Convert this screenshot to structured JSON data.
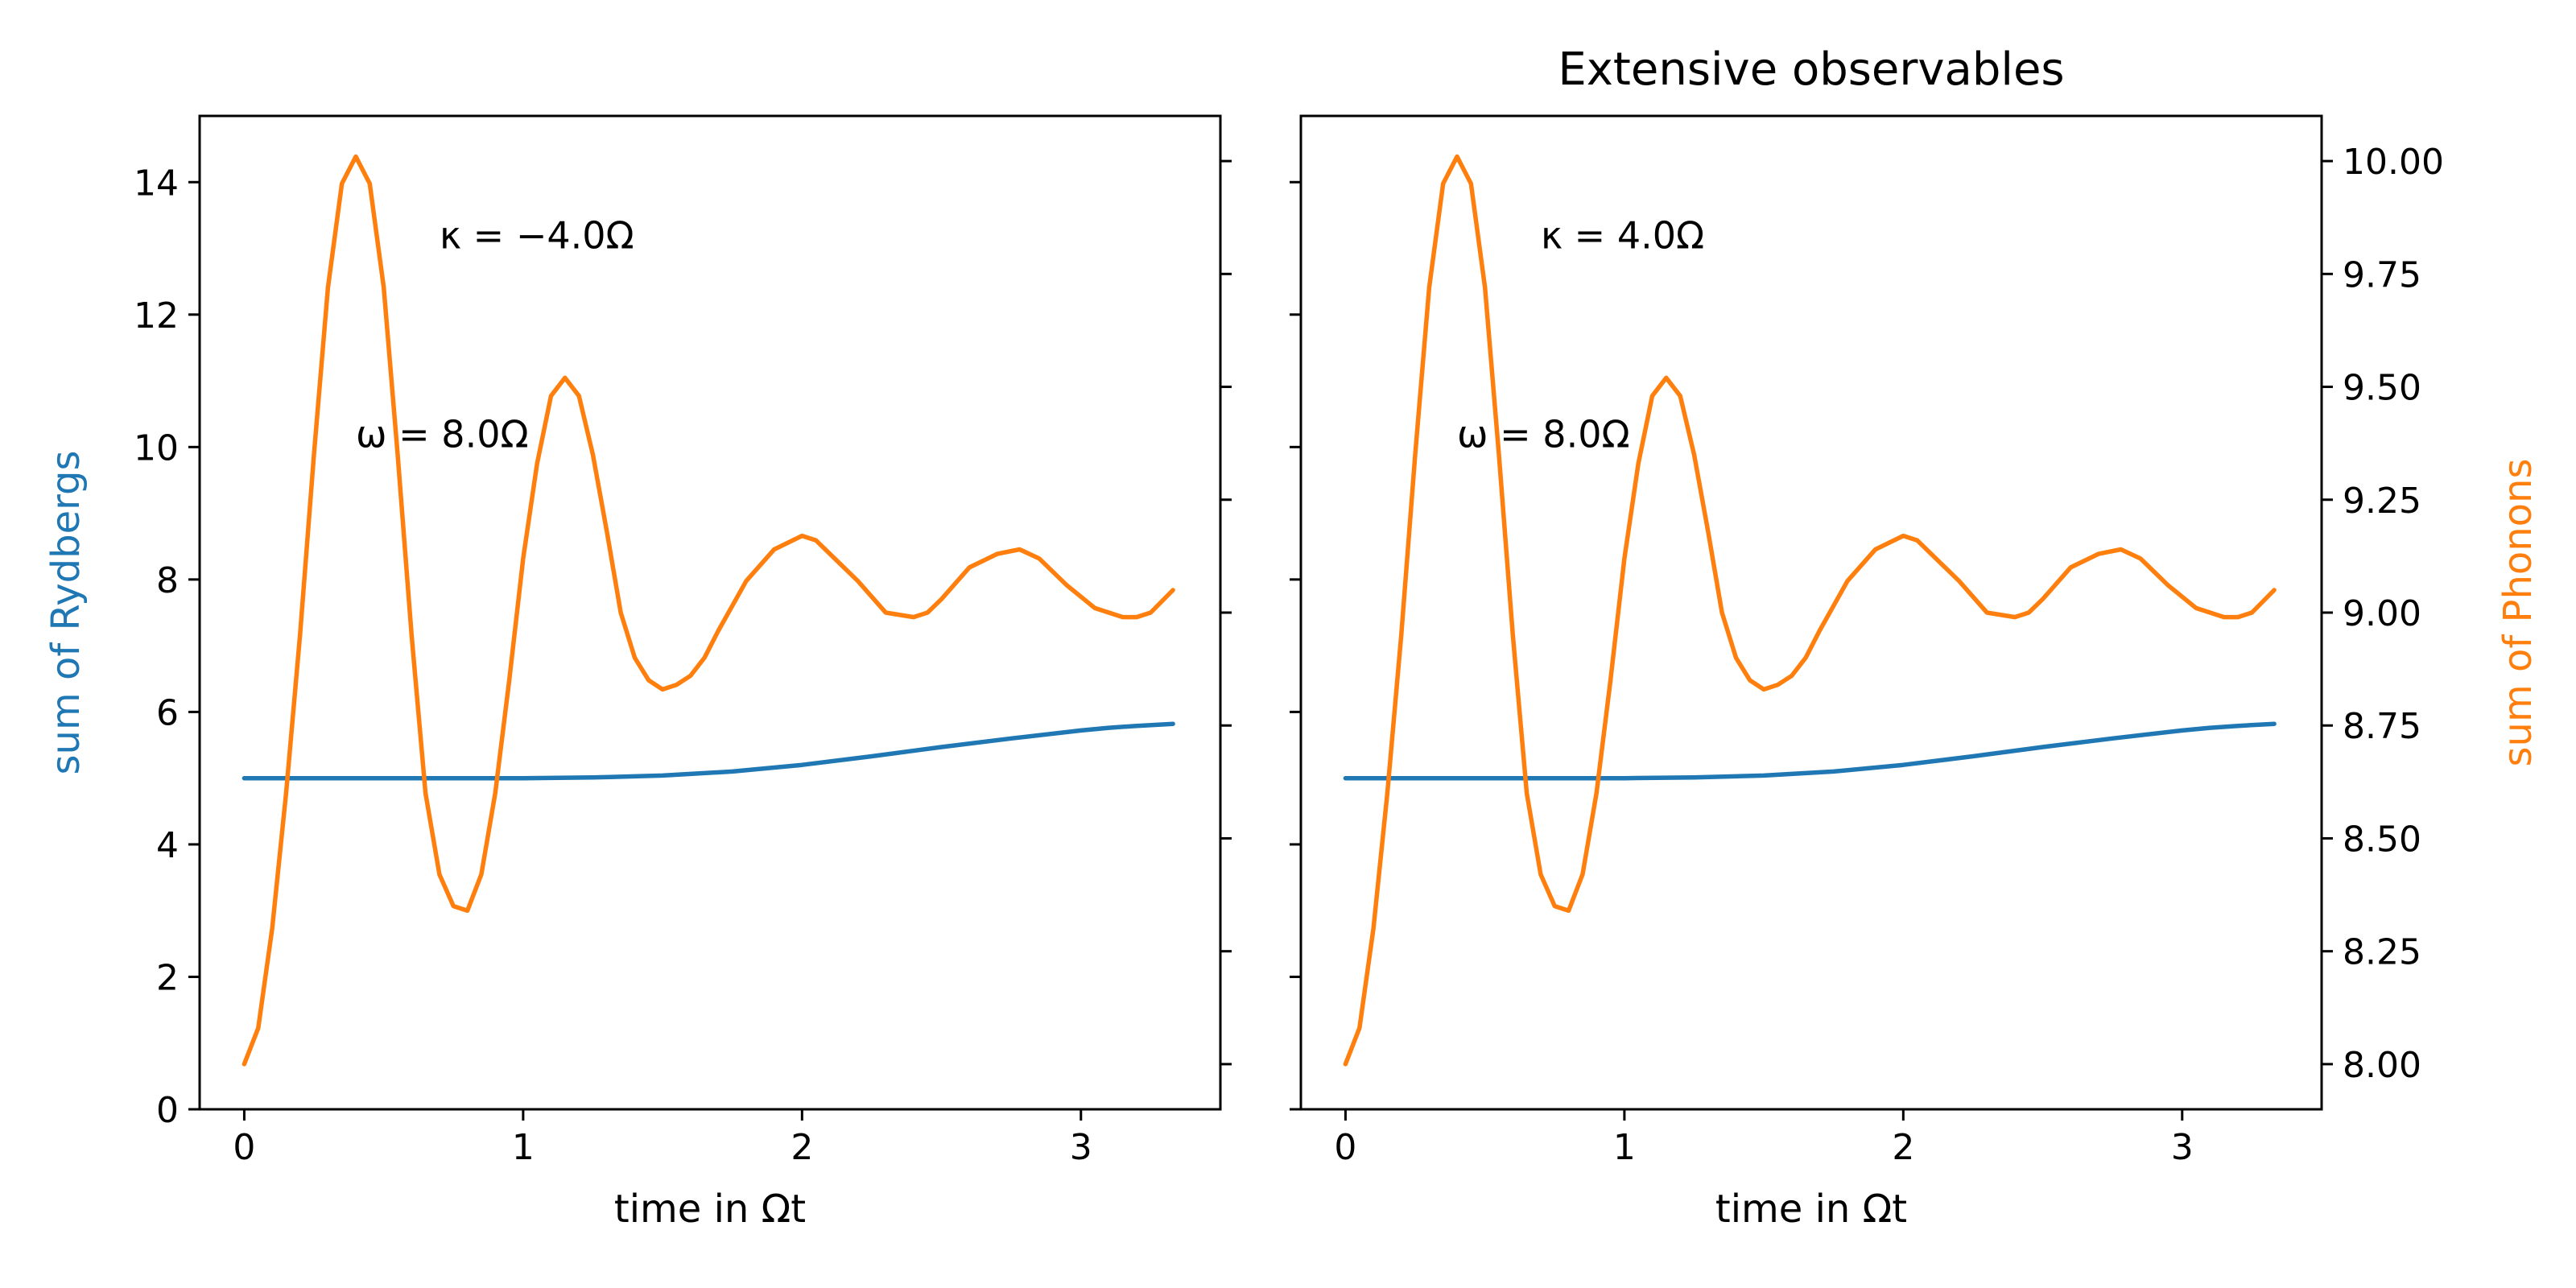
{
  "colors": {
    "rydbergs": "#1f77b4",
    "phonons": "#ff7f0e",
    "axes": "#000000"
  },
  "figure_title": "Extensive observables",
  "chart_data": [
    {
      "type": "line",
      "panel": "left",
      "title": "",
      "xlabel": "time in Ωt",
      "ylabel": "sum of Rydbergs",
      "y2label": "",
      "xlim": [
        -0.16,
        3.5
      ],
      "ylim": [
        0,
        15
      ],
      "y2lim": [
        7.9,
        10.1
      ],
      "xticks": [
        {
          "value": 0,
          "label": "0"
        },
        {
          "value": 1,
          "label": "1"
        },
        {
          "value": 2,
          "label": "2"
        },
        {
          "value": 3,
          "label": "3"
        }
      ],
      "yticks": [
        {
          "value": 0,
          "label": "0"
        },
        {
          "value": 2,
          "label": "2"
        },
        {
          "value": 4,
          "label": "4"
        },
        {
          "value": 6,
          "label": "6"
        },
        {
          "value": 8,
          "label": "8"
        },
        {
          "value": 10,
          "label": "10"
        },
        {
          "value": 12,
          "label": "12"
        },
        {
          "value": 14,
          "label": "14"
        }
      ],
      "y2ticks": [
        {
          "value": 8.0,
          "label": ""
        },
        {
          "value": 8.25,
          "label": ""
        },
        {
          "value": 8.5,
          "label": ""
        },
        {
          "value": 8.75,
          "label": ""
        },
        {
          "value": 9.0,
          "label": ""
        },
        {
          "value": 9.25,
          "label": ""
        },
        {
          "value": 9.5,
          "label": ""
        },
        {
          "value": 9.75,
          "label": ""
        },
        {
          "value": 10.0,
          "label": ""
        }
      ],
      "annotations": [
        {
          "text": "κ = −4.0Ω",
          "x": 0.7,
          "y": 13.0
        },
        {
          "text": "ω = 8.0Ω",
          "x": 0.4,
          "y": 10.0
        }
      ],
      "series": [
        {
          "key": "rydbergs",
          "axis": "left",
          "x": [
            0,
            0.25,
            0.5,
            0.75,
            1.0,
            1.25,
            1.5,
            1.75,
            2.0,
            2.25,
            2.5,
            2.75,
            3.0,
            3.1,
            3.2,
            3.33
          ],
          "values": [
            5.0,
            5.0,
            5.0,
            5.0,
            5.0,
            5.01,
            5.04,
            5.1,
            5.2,
            5.33,
            5.47,
            5.6,
            5.72,
            5.76,
            5.79,
            5.82
          ]
        },
        {
          "key": "phonons",
          "axis": "right",
          "x": [
            0,
            0.05,
            0.1,
            0.15,
            0.2,
            0.25,
            0.3,
            0.35,
            0.4,
            0.45,
            0.5,
            0.55,
            0.6,
            0.65,
            0.7,
            0.75,
            0.8,
            0.85,
            0.9,
            0.95,
            1.0,
            1.05,
            1.1,
            1.15,
            1.2,
            1.25,
            1.3,
            1.35,
            1.4,
            1.45,
            1.5,
            1.55,
            1.6,
            1.65,
            1.7,
            1.8,
            1.9,
            2.0,
            2.05,
            2.1,
            2.2,
            2.3,
            2.4,
            2.45,
            2.5,
            2.6,
            2.7,
            2.78,
            2.85,
            2.95,
            3.05,
            3.15,
            3.2,
            3.25,
            3.33
          ],
          "values": [
            8.0,
            8.08,
            8.3,
            8.6,
            8.95,
            9.35,
            9.72,
            9.95,
            10.01,
            9.95,
            9.72,
            9.35,
            8.95,
            8.6,
            8.42,
            8.35,
            8.34,
            8.42,
            8.6,
            8.85,
            9.12,
            9.33,
            9.48,
            9.52,
            9.48,
            9.35,
            9.18,
            9.0,
            8.9,
            8.85,
            8.83,
            8.84,
            8.86,
            8.9,
            8.96,
            9.07,
            9.14,
            9.17,
            9.16,
            9.13,
            9.07,
            9.0,
            8.99,
            9.0,
            9.03,
            9.1,
            9.13,
            9.14,
            9.12,
            9.06,
            9.01,
            8.99,
            8.99,
            9.0,
            9.05
          ]
        }
      ]
    },
    {
      "type": "line",
      "panel": "right",
      "title": "Extensive observables",
      "xlabel": "time in Ωt",
      "ylabel": "",
      "y2label": "sum of Phonons",
      "xlim": [
        -0.16,
        3.5
      ],
      "ylim": [
        0,
        15
      ],
      "y2lim": [
        7.9,
        10.1
      ],
      "xticks": [
        {
          "value": 0,
          "label": "0"
        },
        {
          "value": 1,
          "label": "1"
        },
        {
          "value": 2,
          "label": "2"
        },
        {
          "value": 3,
          "label": "3"
        }
      ],
      "yticks": [
        {
          "value": 0,
          "label": ""
        },
        {
          "value": 2,
          "label": ""
        },
        {
          "value": 4,
          "label": ""
        },
        {
          "value": 6,
          "label": ""
        },
        {
          "value": 8,
          "label": ""
        },
        {
          "value": 10,
          "label": ""
        },
        {
          "value": 12,
          "label": ""
        },
        {
          "value": 14,
          "label": ""
        }
      ],
      "y2ticks": [
        {
          "value": 8.0,
          "label": "8.00"
        },
        {
          "value": 8.25,
          "label": "8.25"
        },
        {
          "value": 8.5,
          "label": "8.50"
        },
        {
          "value": 8.75,
          "label": "8.75"
        },
        {
          "value": 9.0,
          "label": "9.00"
        },
        {
          "value": 9.25,
          "label": "9.25"
        },
        {
          "value": 9.5,
          "label": "9.50"
        },
        {
          "value": 9.75,
          "label": "9.75"
        },
        {
          "value": 10.0,
          "label": "10.00"
        }
      ],
      "annotations": [
        {
          "text": "κ = 4.0Ω",
          "x": 0.7,
          "y": 13.0
        },
        {
          "text": "ω = 8.0Ω",
          "x": 0.4,
          "y": 10.0
        }
      ],
      "series": [
        {
          "key": "rydbergs",
          "axis": "left",
          "x": [
            0,
            0.25,
            0.5,
            0.75,
            1.0,
            1.25,
            1.5,
            1.75,
            2.0,
            2.25,
            2.5,
            2.75,
            3.0,
            3.1,
            3.2,
            3.33
          ],
          "values": [
            5.0,
            5.0,
            5.0,
            5.0,
            5.0,
            5.01,
            5.04,
            5.1,
            5.2,
            5.33,
            5.47,
            5.6,
            5.72,
            5.76,
            5.79,
            5.82
          ]
        },
        {
          "key": "phonons",
          "axis": "right",
          "x": [
            0,
            0.05,
            0.1,
            0.15,
            0.2,
            0.25,
            0.3,
            0.35,
            0.4,
            0.45,
            0.5,
            0.55,
            0.6,
            0.65,
            0.7,
            0.75,
            0.8,
            0.85,
            0.9,
            0.95,
            1.0,
            1.05,
            1.1,
            1.15,
            1.2,
            1.25,
            1.3,
            1.35,
            1.4,
            1.45,
            1.5,
            1.55,
            1.6,
            1.65,
            1.7,
            1.8,
            1.9,
            2.0,
            2.05,
            2.1,
            2.2,
            2.3,
            2.4,
            2.45,
            2.5,
            2.6,
            2.7,
            2.78,
            2.85,
            2.95,
            3.05,
            3.15,
            3.2,
            3.25,
            3.33
          ],
          "values": [
            8.0,
            8.08,
            8.3,
            8.6,
            8.95,
            9.35,
            9.72,
            9.95,
            10.01,
            9.95,
            9.72,
            9.35,
            8.95,
            8.6,
            8.42,
            8.35,
            8.34,
            8.42,
            8.6,
            8.85,
            9.12,
            9.33,
            9.48,
            9.52,
            9.48,
            9.35,
            9.18,
            9.0,
            8.9,
            8.85,
            8.83,
            8.84,
            8.86,
            8.9,
            8.96,
            9.07,
            9.14,
            9.17,
            9.16,
            9.13,
            9.07,
            9.0,
            8.99,
            9.0,
            9.03,
            9.1,
            9.13,
            9.14,
            9.12,
            9.06,
            9.01,
            8.99,
            8.99,
            9.0,
            9.05
          ]
        }
      ]
    }
  ]
}
